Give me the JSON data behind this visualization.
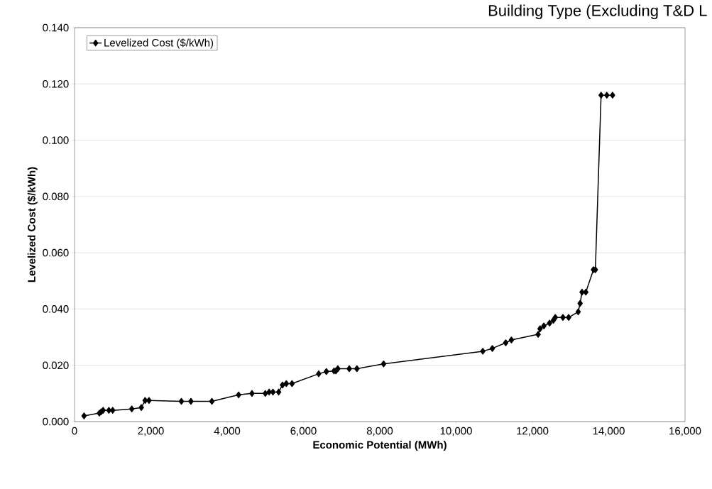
{
  "chart_data": {
    "type": "line",
    "title": "Building Type (Excluding T&D L",
    "xlabel": "Economic Potential (MWh)",
    "ylabel": "Levelized Cost ($/kWh)",
    "xlim": [
      0,
      16000
    ],
    "xticks": [
      {
        "value": 0,
        "label": "0"
      },
      {
        "value": 2000,
        "label": "2,000"
      },
      {
        "value": 4000,
        "label": "4,000"
      },
      {
        "value": 6000,
        "label": "6,000"
      },
      {
        "value": 8000,
        "label": "8,000"
      },
      {
        "value": 10000,
        "label": "10,000"
      },
      {
        "value": 12000,
        "label": "12,000"
      },
      {
        "value": 14000,
        "label": "14,000"
      },
      {
        "value": 16000,
        "label": "16,000"
      }
    ],
    "ylim": [
      0,
      0.14
    ],
    "yticks": [
      {
        "value": 0,
        "label": "0.000"
      },
      {
        "value": 0.02,
        "label": "0.020"
      },
      {
        "value": 0.04,
        "label": "0.040"
      },
      {
        "value": 0.06,
        "label": "0.060"
      },
      {
        "value": 0.08,
        "label": "0.080"
      },
      {
        "value": 0.1,
        "label": "0.100"
      },
      {
        "value": 0.12,
        "label": "0.120"
      },
      {
        "value": 0.14,
        "label": "0.140"
      }
    ],
    "grid": "y",
    "legend": "top left",
    "marker": "diamond",
    "line_style": "solid",
    "series": [
      {
        "name": "Levelized Cost ($/kWh)",
        "color": "#000000",
        "x": [
          250,
          650,
          700,
          750,
          900,
          1000,
          1500,
          1750,
          1850,
          1950,
          2800,
          3050,
          3600,
          4300,
          4650,
          5000,
          5100,
          5200,
          5350,
          5450,
          5550,
          5700,
          6400,
          6600,
          6800,
          6850,
          6900,
          7200,
          7400,
          8100,
          10700,
          10950,
          11300,
          11450,
          12150,
          12200,
          12300,
          12450,
          12550,
          12600,
          12800,
          12950,
          13200,
          13250,
          13300,
          13400,
          13600,
          13650,
          13800,
          13950,
          14100
        ],
        "values": [
          0.002,
          0.003,
          0.0035,
          0.004,
          0.004,
          0.004,
          0.0045,
          0.005,
          0.0075,
          0.0075,
          0.0072,
          0.0072,
          0.0072,
          0.0095,
          0.01,
          0.01,
          0.0105,
          0.0105,
          0.0105,
          0.013,
          0.0135,
          0.0135,
          0.017,
          0.0178,
          0.018,
          0.018,
          0.0188,
          0.0188,
          0.0188,
          0.0205,
          0.025,
          0.026,
          0.028,
          0.029,
          0.031,
          0.033,
          0.034,
          0.035,
          0.036,
          0.037,
          0.037,
          0.037,
          0.039,
          0.042,
          0.046,
          0.046,
          0.054,
          0.054,
          0.116,
          0.116,
          0.116
        ]
      }
    ]
  }
}
